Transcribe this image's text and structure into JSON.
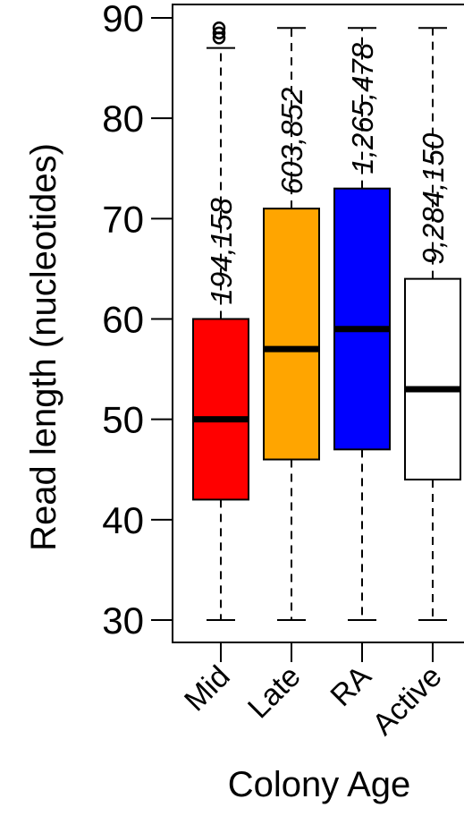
{
  "chart_data": {
    "type": "boxplot",
    "title": "",
    "xlabel": "Colony Age",
    "ylabel": "Read length (nucleotides)",
    "ylim": [
      30,
      90
    ],
    "yticks": [
      30,
      40,
      50,
      60,
      70,
      80,
      90
    ],
    "grid": false,
    "legend": "none",
    "categories": [
      "Mid",
      "Late",
      "RA",
      "Active"
    ],
    "boxes": [
      {
        "category": "Mid",
        "count_label": "194,158",
        "min": 30,
        "q1": 42,
        "median": 50,
        "q3": 60,
        "max": 87,
        "outliers": [
          88,
          88.5,
          89
        ],
        "color": "#ff0000"
      },
      {
        "category": "Late",
        "count_label": "603,852",
        "min": 30,
        "q1": 46,
        "median": 57,
        "q3": 71,
        "max": 89,
        "outliers": [],
        "color": "#ffa500"
      },
      {
        "category": "RA",
        "count_label": "1,265,478",
        "min": 30,
        "q1": 47,
        "median": 59,
        "q3": 73,
        "max": 89,
        "outliers": [],
        "color": "#0000ff"
      },
      {
        "category": "Active",
        "count_label": "9,284,150",
        "min": 30,
        "q1": 44,
        "median": 53,
        "q3": 64,
        "max": 89,
        "outliers": [],
        "color": "#ffffff"
      }
    ]
  }
}
